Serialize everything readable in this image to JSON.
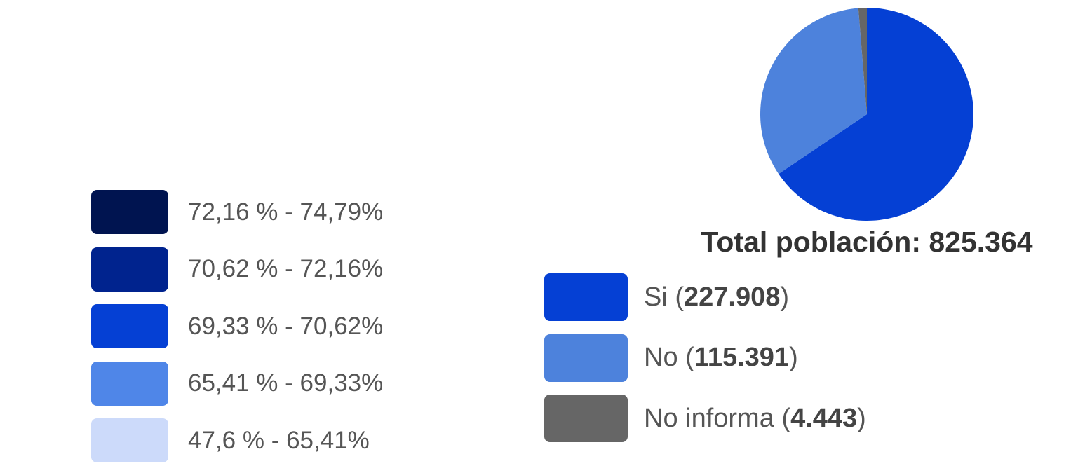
{
  "map_legend": {
    "items": [
      {
        "label": "72,16 % - 74,79%",
        "color": "#001450"
      },
      {
        "label": "70,62 % - 72,16%",
        "color": "#00238e"
      },
      {
        "label": "69,33 % - 70,62%",
        "color": "#0540d4"
      },
      {
        "label": "65,41 % - 69,33%",
        "color": "#4f86e8"
      },
      {
        "label": "47,6 % - 65,41%",
        "color": "#ccdafa"
      }
    ]
  },
  "chart_data": {
    "type": "pie",
    "title": "Total población: 825.364",
    "categories": [
      "Si",
      "No",
      "No informa"
    ],
    "values": [
      227908,
      115391,
      4443
    ],
    "value_labels": [
      "227.908",
      "115.391",
      "4.443"
    ],
    "colors": [
      "#0540d4",
      "#4d82dc",
      "#666666"
    ]
  }
}
